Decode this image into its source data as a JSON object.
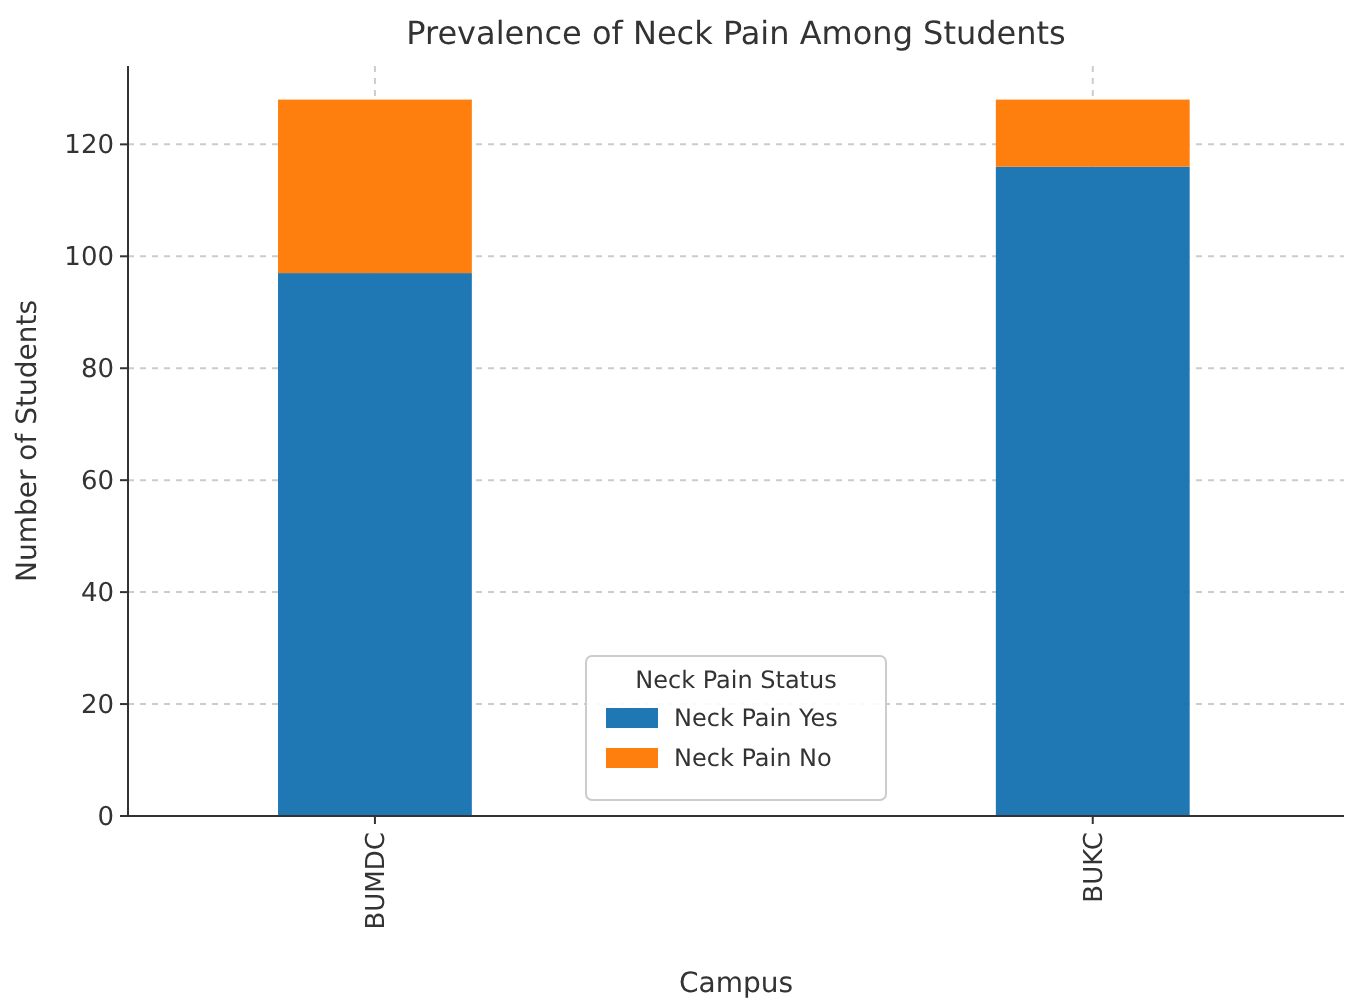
{
  "chart_data": {
    "type": "bar",
    "title": "Prevalence of Neck Pain Among Students",
    "xlabel": "Campus",
    "ylabel": "Number of Students",
    "categories": [
      "BUMDC",
      "BUKC"
    ],
    "stacked": true,
    "series": [
      {
        "name": "Neck Pain Yes",
        "color": "#1f77b4",
        "values": [
          97,
          116
        ]
      },
      {
        "name": "Neck Pain No",
        "color": "#ff7f0e",
        "values": [
          31,
          12
        ]
      }
    ],
    "ylim": [
      0,
      134
    ],
    "yticks": [
      0,
      20,
      40,
      60,
      80,
      100,
      120
    ],
    "grid": true,
    "legend": "bottom",
    "legend_title": "Neck Pain Status"
  }
}
